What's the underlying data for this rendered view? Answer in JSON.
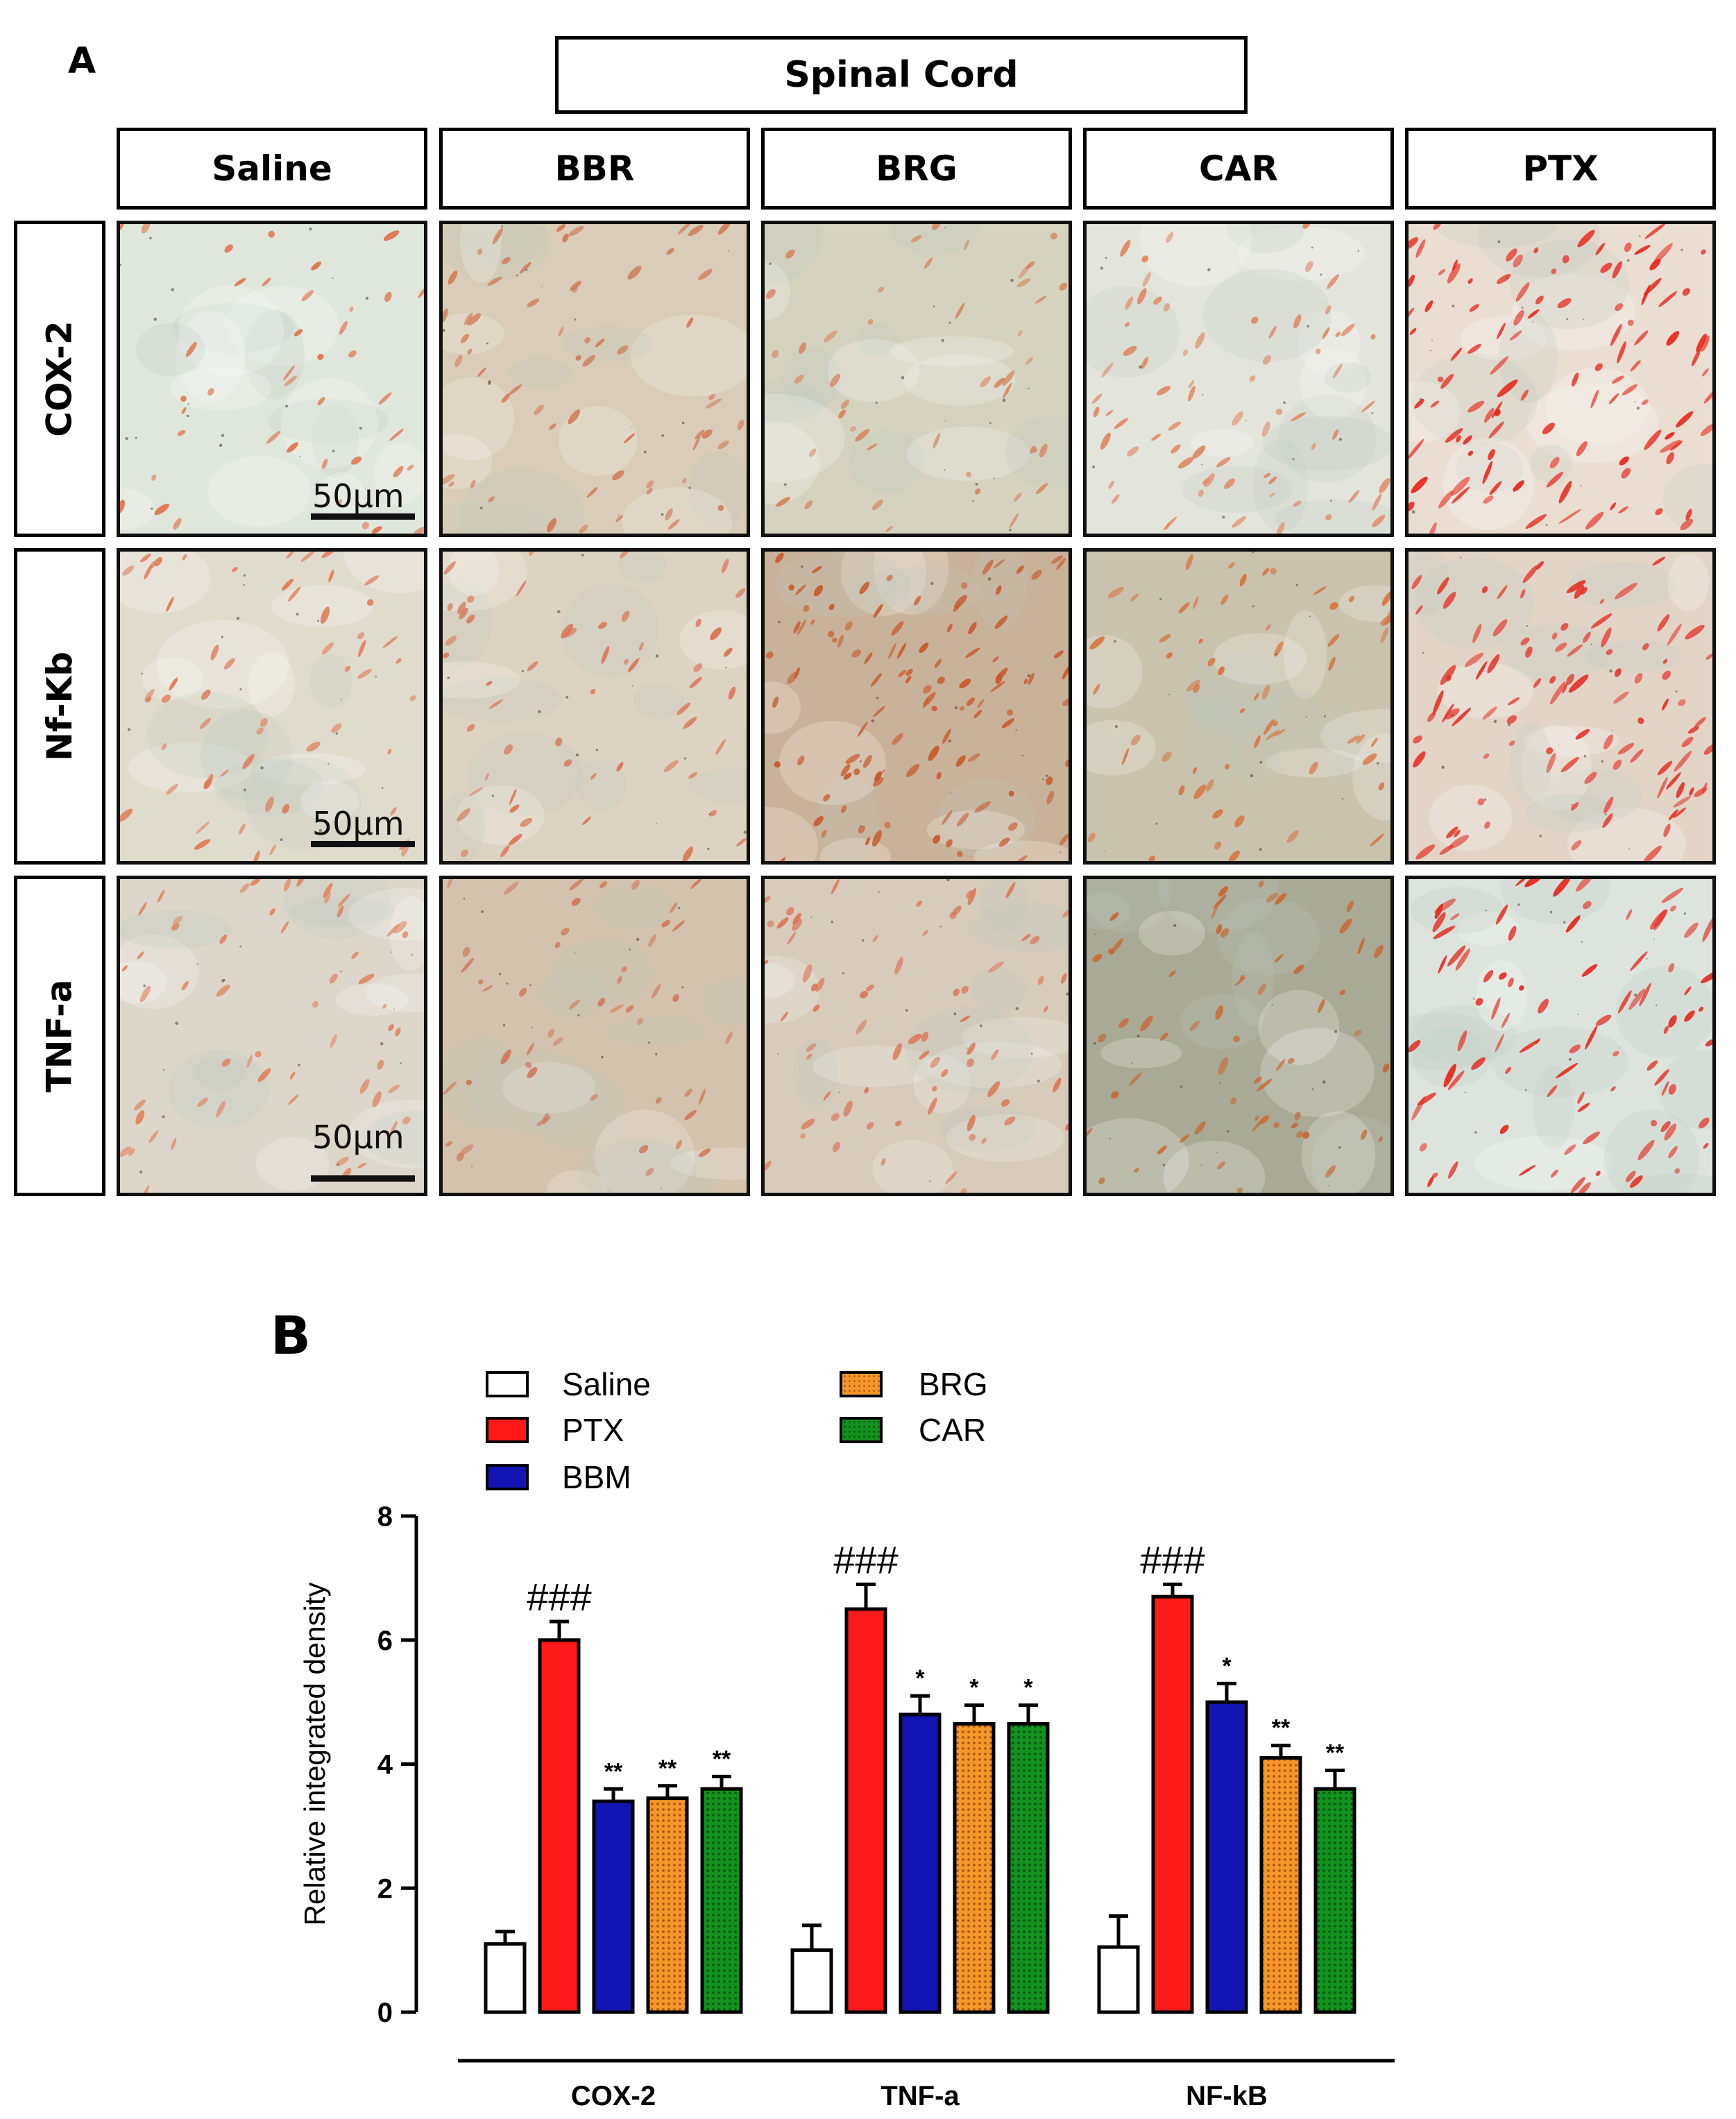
{
  "panel_a": {
    "letter": "A",
    "header": "Spinal Cord",
    "columns": [
      "Saline",
      "BBR",
      "BRG",
      "CAR",
      "PTX"
    ],
    "rows": [
      "COX-2",
      "Nf-Kb",
      "TNF-a"
    ],
    "scale_bar": "50µm"
  },
  "panel_b": {
    "letter": "B",
    "legend": [
      {
        "label": "Saline",
        "color": "#ffffff",
        "pattern": "none"
      },
      {
        "label": "PTX",
        "color": "#ff1a1a",
        "pattern": "none"
      },
      {
        "label": "BBM",
        "color": "#1414b4",
        "pattern": "none"
      },
      {
        "label": "BRG",
        "color": "#f5962a",
        "pattern": "dots"
      },
      {
        "label": "CAR",
        "color": "#12921e",
        "pattern": "dots"
      }
    ]
  },
  "chart_data": {
    "type": "bar",
    "categories": [
      "COX-2",
      "TNF-a",
      "NF-kB"
    ],
    "ylabel": "Relative integrated density",
    "xlabel": "",
    "ylim": [
      0,
      8
    ],
    "yticks": [
      0,
      2,
      4,
      6,
      8
    ],
    "series": [
      {
        "name": "Saline",
        "values": [
          1.1,
          1.0,
          1.05
        ],
        "errors": [
          0.2,
          0.4,
          0.5
        ],
        "annotations": [
          "",
          "",
          ""
        ]
      },
      {
        "name": "PTX",
        "values": [
          6.0,
          6.5,
          6.7
        ],
        "errors": [
          0.3,
          0.4,
          0.2
        ],
        "annotations": [
          "###",
          "###",
          "###"
        ]
      },
      {
        "name": "BBM",
        "values": [
          3.4,
          4.8,
          5.0
        ],
        "errors": [
          0.2,
          0.3,
          0.3
        ],
        "annotations": [
          "**",
          "*",
          "*"
        ]
      },
      {
        "name": "BRG",
        "values": [
          3.45,
          4.65,
          4.1
        ],
        "errors": [
          0.2,
          0.3,
          0.2
        ],
        "annotations": [
          "**",
          "*",
          "**"
        ]
      },
      {
        "name": "CAR",
        "values": [
          3.6,
          4.65,
          3.6
        ],
        "errors": [
          0.2,
          0.3,
          0.3
        ],
        "annotations": [
          "**",
          "*",
          "**"
        ]
      }
    ]
  }
}
